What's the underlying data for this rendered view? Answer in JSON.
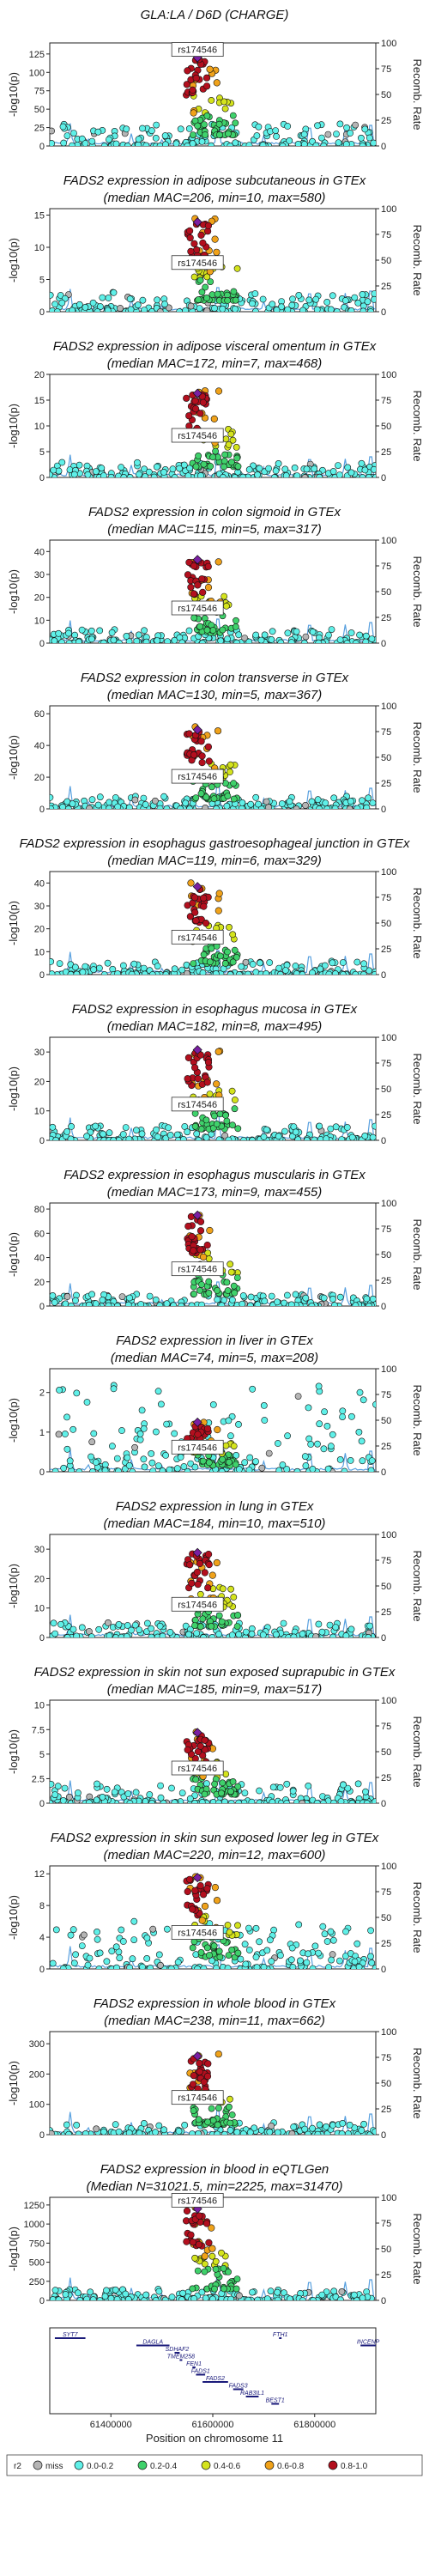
{
  "figure": {
    "xlabel": "Position on chromosome 11",
    "x_ticks": [
      61400000,
      61600000,
      61800000
    ],
    "xlim": [
      61280000,
      61920000
    ],
    "lead_snp": "rs174546",
    "lead_pos": 61570000,
    "right_axis_label": "Recomb. Rate",
    "right_ticks": [
      0,
      25,
      50,
      75,
      100
    ],
    "legend": {
      "title": "r2",
      "items": [
        {
          "label": "miss",
          "color": "#b5b5b5"
        },
        {
          "label": "0.0-0.2",
          "color": "#5ff0e8"
        },
        {
          "label": "0.2-0.4",
          "color": "#3fd16b"
        },
        {
          "label": "0.4-0.6",
          "color": "#d4e31d"
        },
        {
          "label": "0.6-0.8",
          "color": "#f0a21a"
        },
        {
          "label": "0.8-1.0",
          "color": "#b30f1e"
        }
      ]
    },
    "lead_color": "#7a1fa2"
  },
  "genes": [
    {
      "name": "SYT7",
      "start": 61290000,
      "end": 61350000,
      "row": 0
    },
    {
      "name": "DAGLA",
      "start": 61450000,
      "end": 61515000,
      "row": 1
    },
    {
      "name": "SDHAF2",
      "start": 61525000,
      "end": 61535000,
      "row": 2
    },
    {
      "name": "TMEM258",
      "start": 61535000,
      "end": 61540000,
      "row": 3
    },
    {
      "name": "FEN1",
      "start": 61560000,
      "end": 61566000,
      "row": 4
    },
    {
      "name": "FADS1",
      "start": 61567000,
      "end": 61585000,
      "row": 5
    },
    {
      "name": "FADS2",
      "start": 61580000,
      "end": 61630000,
      "row": 6
    },
    {
      "name": "FADS3",
      "start": 61640000,
      "end": 61660000,
      "row": 7
    },
    {
      "name": "RAB3IL1",
      "start": 61665000,
      "end": 61690000,
      "row": 8
    },
    {
      "name": "BEST1",
      "start": 61715000,
      "end": 61730000,
      "row": 9
    },
    {
      "name": "FTH1",
      "start": 61730000,
      "end": 61735000,
      "row": 0
    },
    {
      "name": "INCENP",
      "start": 61890000,
      "end": 61920000,
      "row": 1
    }
  ],
  "chart_data": [
    {
      "type": "scatter",
      "title": "GLA:LA / D6D (CHARGE)",
      "subtitle": "",
      "ylabel": "-log10(p)",
      "ylim": [
        0,
        140
      ],
      "yticks": [
        0,
        25,
        50,
        75,
        100,
        125
      ],
      "peak": 125,
      "bg_max": 30,
      "label_y": 130
    },
    {
      "type": "scatter",
      "title": "FADS2 expression in adipose subcutaneous in GTEx",
      "subtitle": "(median MAC=206, min=10, max=580)",
      "ylabel": "-log10(p)",
      "ylim": [
        0,
        16
      ],
      "yticks": [
        0,
        5,
        10,
        15
      ],
      "peak": 14.5,
      "bg_max": 3,
      "label_y": 7.5
    },
    {
      "type": "scatter",
      "title": "FADS2 expression in adipose visceral omentum in GTEx",
      "subtitle": "(median MAC=172, min=7, max=468)",
      "ylabel": "-log10(p)",
      "ylim": [
        0,
        20
      ],
      "yticks": [
        0,
        5,
        10,
        15,
        20
      ],
      "peak": 17,
      "bg_max": 3,
      "label_y": 8
    },
    {
      "type": "scatter",
      "title": "FADS2 expression in colon sigmoid in GTEx",
      "subtitle": "(median MAC=115, min=5, max=317)",
      "ylabel": "-log10(p)",
      "ylim": [
        0,
        45
      ],
      "yticks": [
        0,
        10,
        20,
        30,
        40
      ],
      "peak": 38,
      "bg_max": 6,
      "label_y": 15
    },
    {
      "type": "scatter",
      "title": "FADS2 expression in colon transverse in GTEx",
      "subtitle": "(median MAC=130, min=5, max=367)",
      "ylabel": "-log10(p)",
      "ylim": [
        0,
        65
      ],
      "yticks": [
        0,
        20,
        40,
        60
      ],
      "peak": 52,
      "bg_max": 8,
      "label_y": 20
    },
    {
      "type": "scatter",
      "title": "FADS2 expression in esophagus gastroesophageal junction in GTEx",
      "subtitle": "(median MAC=119, min=6, max=329)",
      "ylabel": "-log10(p)",
      "ylim": [
        0,
        45
      ],
      "yticks": [
        0,
        10,
        20,
        30,
        40
      ],
      "peak": 40,
      "bg_max": 6,
      "label_y": 16
    },
    {
      "type": "scatter",
      "title": "FADS2 expression in esophagus mucosa in GTEx",
      "subtitle": "(median MAC=182, min=8, max=495)",
      "ylabel": "-log10(p)",
      "ylim": [
        0,
        35
      ],
      "yticks": [
        0,
        10,
        20,
        30
      ],
      "peak": 32,
      "bg_max": 5,
      "label_y": 12
    },
    {
      "type": "scatter",
      "title": "FADS2 expression in esophagus muscularis in GTEx",
      "subtitle": "(median MAC=173, min=9, max=455)",
      "ylabel": "-log10(p)",
      "ylim": [
        0,
        85
      ],
      "yticks": [
        0,
        20,
        40,
        60,
        80
      ],
      "peak": 78,
      "bg_max": 10,
      "label_y": 30
    },
    {
      "type": "scatter",
      "title": "FADS2 expression in liver in GTEx",
      "subtitle": "(median MAC=74, min=5, max=208)",
      "ylabel": "-log10(p)",
      "ylim": [
        0,
        2.6
      ],
      "yticks": [
        0,
        1,
        2
      ],
      "peak": 1.3,
      "bg_max": 2.2,
      "label_y": 0.6
    },
    {
      "type": "scatter",
      "title": "FADS2 expression in lung in GTEx",
      "subtitle": "(median MAC=184, min=10, max=510)",
      "ylabel": "-log10(p)",
      "ylim": [
        0,
        35
      ],
      "yticks": [
        0,
        10,
        20,
        30
      ],
      "peak": 30,
      "bg_max": 5,
      "label_y": 11
    },
    {
      "type": "scatter",
      "title": "FADS2 expression in skin not sun exposed suprapubic in GTEx",
      "subtitle": "(median MAC=185, min=9, max=517)",
      "ylabel": "-log10(p)",
      "ylim": [
        0,
        10.5
      ],
      "yticks": [
        0,
        2.5,
        5.0,
        7.5,
        10.0
      ],
      "peak": 7.5,
      "bg_max": 2,
      "label_y": 3.5
    },
    {
      "type": "scatter",
      "title": "FADS2 expression in skin sun exposed lower leg in GTEx",
      "subtitle": "(median MAC=220, min=12, max=600)",
      "ylabel": "-log10(p)",
      "ylim": [
        0,
        13
      ],
      "yticks": [
        0,
        4,
        8,
        12
      ],
      "peak": 12,
      "bg_max": 6,
      "label_y": 4.5
    },
    {
      "type": "scatter",
      "title": "FADS2 expression in whole blood in GTEx",
      "subtitle": "(median MAC=238, min=11, max=662)",
      "ylabel": "-log10(p)",
      "ylim": [
        0,
        340
      ],
      "yticks": [
        0,
        100,
        200,
        300
      ],
      "peak": 270,
      "bg_max": 40,
      "label_y": 120
    },
    {
      "type": "scatter",
      "title": "FADS2 expression in blood in eQTLGen",
      "subtitle": "(Median N=31021.5, min=2225, max=31470)",
      "ylabel": "-log10(p)",
      "ylim": [
        0,
        1350
      ],
      "yticks": [
        0,
        250,
        500,
        750,
        1000,
        1250
      ],
      "peak": 1250,
      "bg_max": 150,
      "label_y": 1300
    }
  ]
}
